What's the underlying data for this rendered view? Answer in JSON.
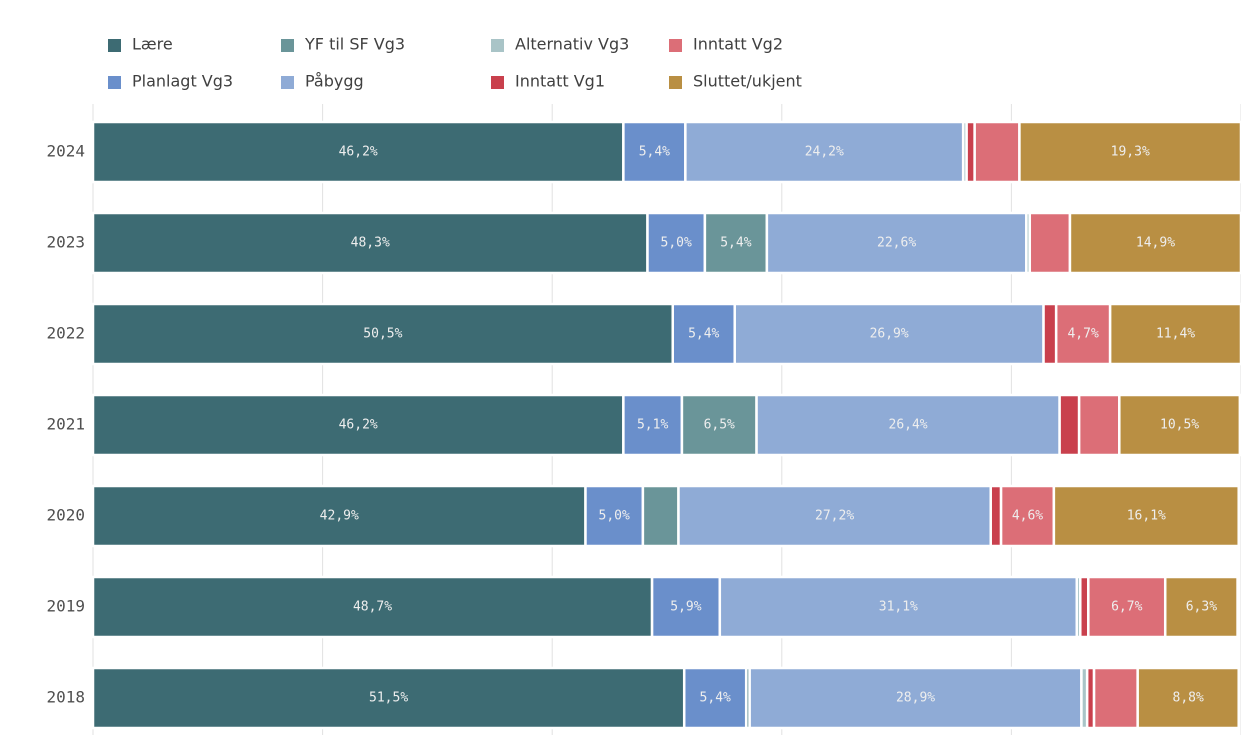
{
  "chart_data": {
    "type": "stacked-bar-horizontal",
    "categories": [
      "2024",
      "2023",
      "2022",
      "2021",
      "2020",
      "2019",
      "2018"
    ],
    "xlim": [
      0,
      100
    ],
    "xticks": [
      0,
      20,
      40,
      60,
      80,
      100
    ],
    "grid": true,
    "series": [
      {
        "name": "Lære",
        "color": "#3d6b73",
        "values": [
          46.2,
          48.3,
          50.5,
          46.2,
          42.9,
          48.7,
          51.5
        ],
        "value_labels": [
          "46,2%",
          "48,3%",
          "50,5%",
          "46,2%",
          "42,9%",
          "48,7%",
          "51,5%"
        ]
      },
      {
        "name": "Planlagt Vg3",
        "color": "#6a8fcb",
        "values": [
          5.4,
          5.0,
          5.4,
          5.1,
          5.0,
          5.9,
          5.4
        ],
        "value_labels": [
          "5,4%",
          "5,0%",
          "5,4%",
          "5,1%",
          "5,0%",
          "5,9%",
          "5,4%"
        ]
      },
      {
        "name": "YF til SF Vg3",
        "color": "#6a9599",
        "values": [
          0,
          5.4,
          0,
          6.5,
          3.1,
          0,
          0.3
        ],
        "value_labels": [
          null,
          "5,4%",
          null,
          "6,5%",
          null,
          null,
          null
        ]
      },
      {
        "name": "Påbygg",
        "color": "#8fabd6",
        "values": [
          24.2,
          22.6,
          26.9,
          26.4,
          27.2,
          31.1,
          28.9
        ],
        "value_labels": [
          "24,2%",
          "22,6%",
          "26,9%",
          "26,4%",
          "27,2%",
          "31,1%",
          "28,9%"
        ]
      },
      {
        "name": "Alternativ Vg3",
        "color": "#a9c4c7",
        "values": [
          0.3,
          0.3,
          0,
          0,
          0,
          0.3,
          0.5
        ],
        "value_labels": [
          null,
          null,
          null,
          null,
          null,
          null,
          null
        ]
      },
      {
        "name": "Inntatt Vg1",
        "color": "#c9404d",
        "values": [
          0.7,
          0,
          1.1,
          1.7,
          0.9,
          0.7,
          0.6
        ],
        "value_labels": [
          null,
          null,
          null,
          null,
          null,
          null,
          null
        ]
      },
      {
        "name": "Inntatt Vg2",
        "color": "#dc6e77",
        "values": [
          3.9,
          3.5,
          4.7,
          3.5,
          4.6,
          6.7,
          3.8
        ],
        "value_labels": [
          null,
          null,
          "4,7%",
          null,
          "4,6%",
          "6,7%",
          null
        ]
      },
      {
        "name": "Sluttet/ukjent",
        "color": "#b98f43",
        "values": [
          19.3,
          14.9,
          11.4,
          10.5,
          16.1,
          6.3,
          8.8
        ],
        "value_labels": [
          "19,3%",
          "14,9%",
          "11,4%",
          "10,5%",
          "16,1%",
          "6,3%",
          "8,8%"
        ]
      }
    ]
  }
}
